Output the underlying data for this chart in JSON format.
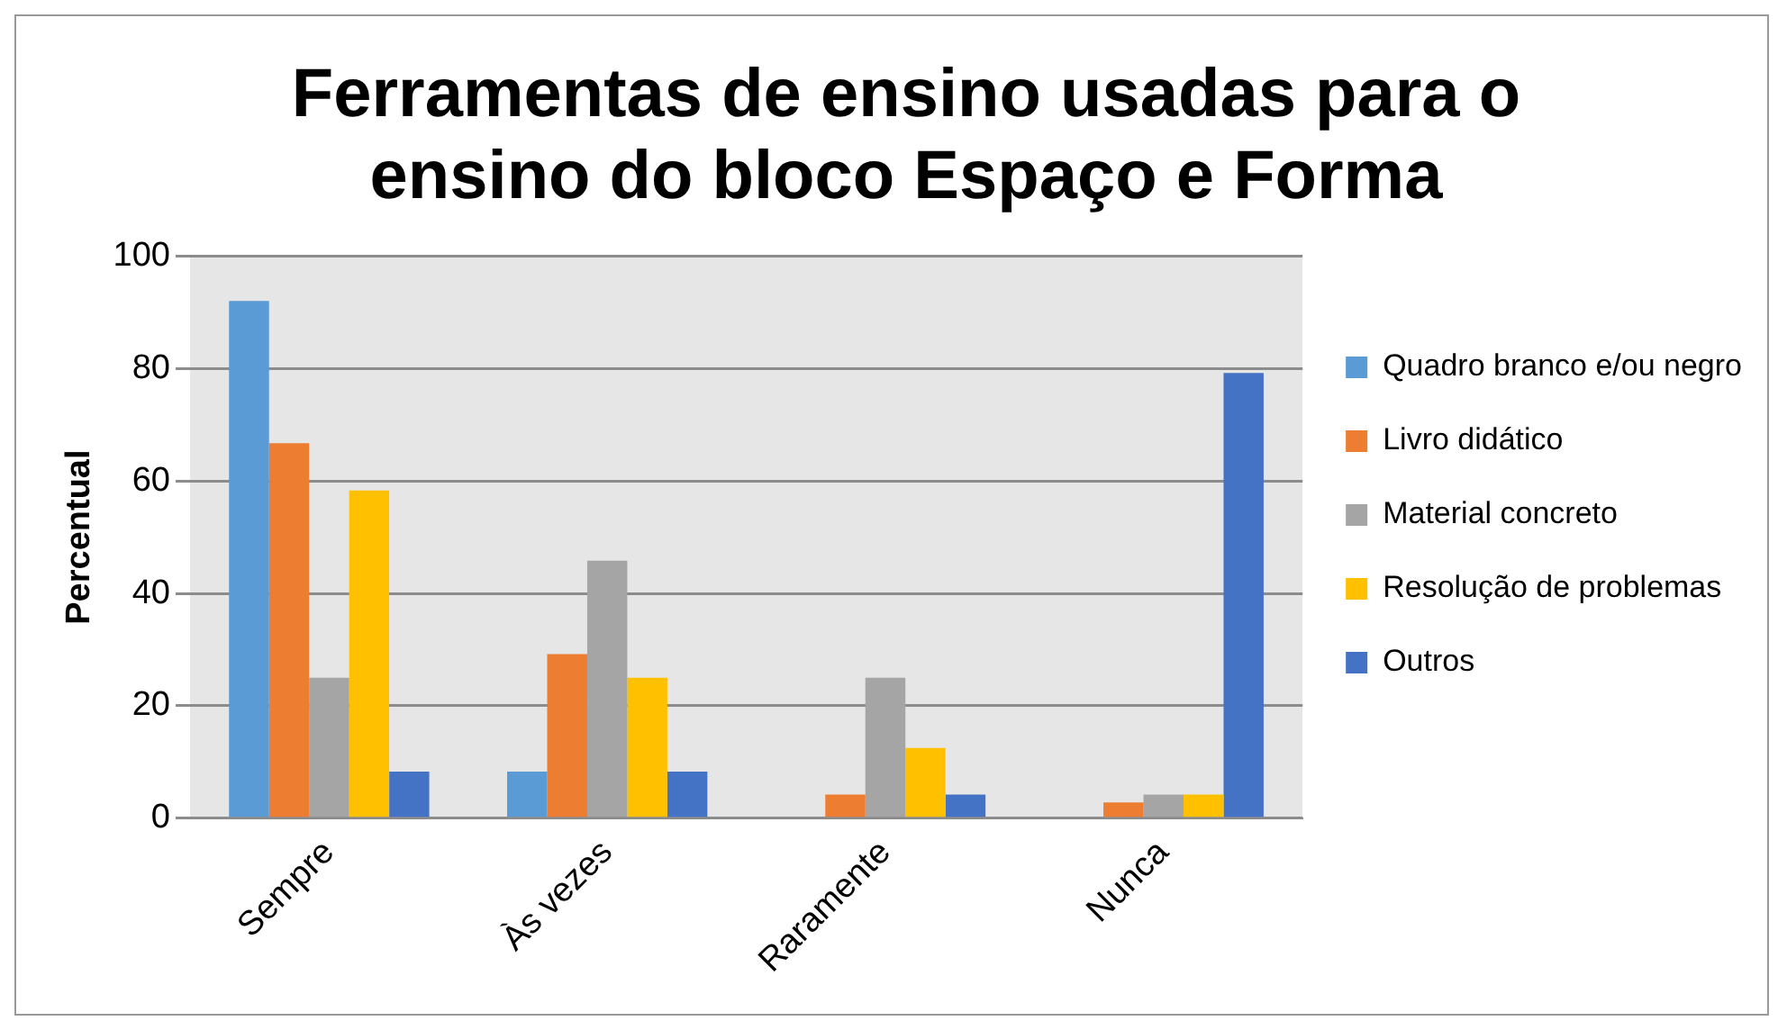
{
  "chart_data": {
    "type": "bar",
    "title": "Ferramentas de ensino usadas para o ensino do bloco Espaço e Forma",
    "ylabel": "Percentual",
    "categories": [
      "Sempre",
      "Às vezes",
      "Raramente",
      "Nunca"
    ],
    "series": [
      {
        "name": "Quadro branco e/ou negro",
        "color": "#5b9bd5",
        "values": [
          92,
          8.3,
          0,
          0
        ]
      },
      {
        "name": "Livro didático",
        "color": "#ed7d31",
        "values": [
          66.7,
          29.2,
          4.2,
          2.8
        ]
      },
      {
        "name": "Material concreto",
        "color": "#a5a5a5",
        "values": [
          25,
          45.8,
          25,
          4.2
        ]
      },
      {
        "name": "Resolução de problemas",
        "color": "#ffc000",
        "values": [
          58.3,
          25,
          12.5,
          4.2
        ]
      },
      {
        "name": "Outros",
        "color": "#4472c4",
        "values": [
          8.3,
          8.3,
          4.2,
          79.2
        ]
      }
    ],
    "ylim": [
      0,
      100
    ],
    "yticks": [
      0,
      20,
      40,
      60,
      80,
      100
    ],
    "grid": "y",
    "legend": "right"
  }
}
